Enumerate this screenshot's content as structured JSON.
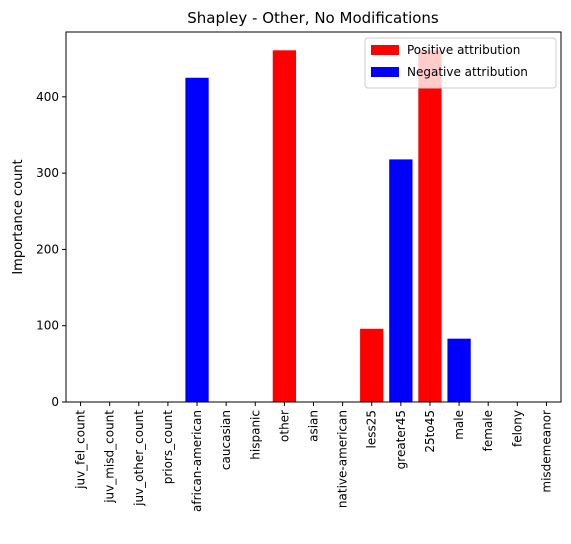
{
  "chart_data": {
    "type": "bar",
    "title": "Shapley - Other, No Modifications",
    "xlabel": "",
    "ylabel": "Importance count",
    "ylim": [
      0,
      485
    ],
    "yticks": [
      0,
      100,
      200,
      300,
      400
    ],
    "categories": [
      "juv_fel_count",
      "juv_misd_count",
      "juv_other_count",
      "priors_count",
      "african-american",
      "caucasian",
      "hispanic",
      "other",
      "asian",
      "native-american",
      "less25",
      "greater45",
      "25to45",
      "male",
      "female",
      "felony",
      "misdemeanor"
    ],
    "values": [
      0,
      0,
      0,
      0,
      425,
      0,
      0,
      461,
      0,
      0,
      96,
      318,
      461,
      83,
      0,
      0,
      0
    ],
    "attribution": [
      "none",
      "none",
      "none",
      "none",
      "negative",
      "none",
      "none",
      "positive",
      "none",
      "none",
      "positive",
      "negative",
      "positive",
      "negative",
      "none",
      "none",
      "none"
    ],
    "legend": {
      "placement": "top-right",
      "entries": [
        {
          "label": "Positive attribution",
          "color": "#ff0000",
          "key": "positive"
        },
        {
          "label": "Negative attribution",
          "color": "#0000ff",
          "key": "negative"
        }
      ]
    },
    "grid": false
  }
}
